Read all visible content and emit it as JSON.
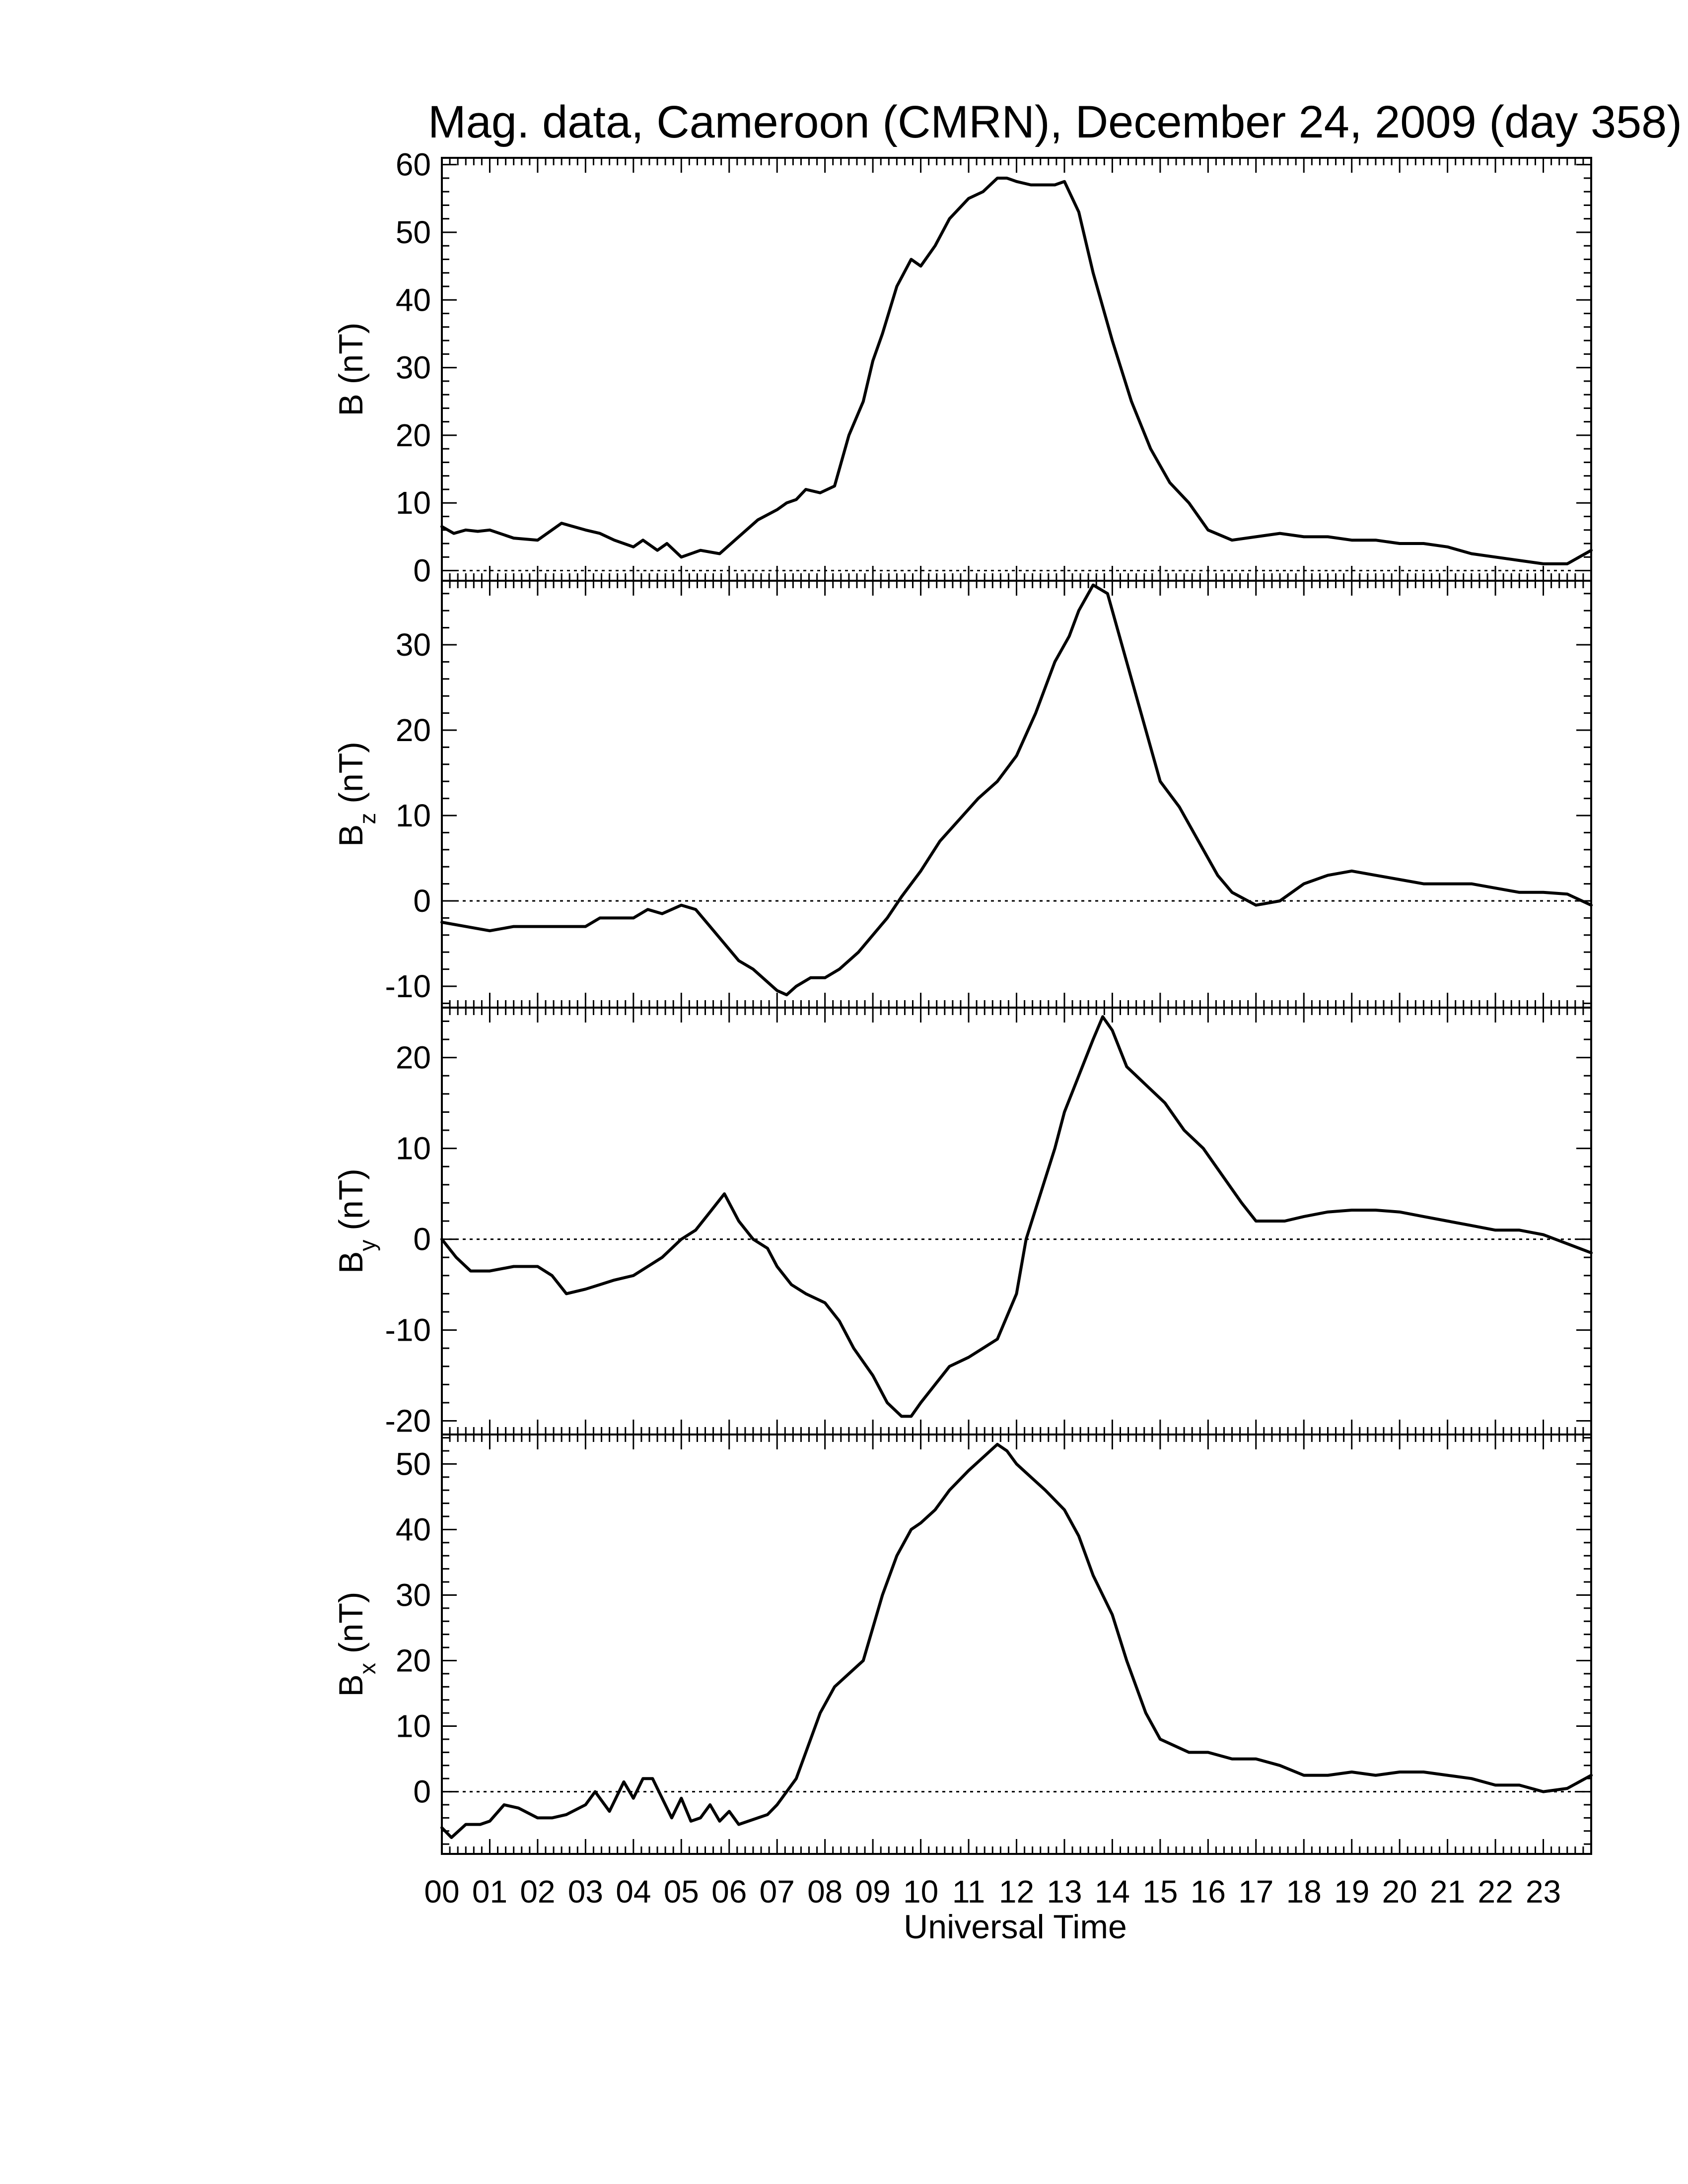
{
  "figure": {
    "title": "Mag. data, Cameroon (CMRN), December 24, 2009 (day 358)",
    "xlabel": "Universal Time"
  },
  "chart_data": [
    {
      "type": "line",
      "name": "B",
      "ylabel": {
        "main": "B",
        "sub": "",
        "unit": "(nT)"
      },
      "ylim": [
        -1.5,
        61
      ],
      "yticks": [
        0,
        10,
        20,
        30,
        40,
        50,
        60
      ],
      "zero_line": true,
      "xlim": [
        0,
        24
      ],
      "x": [
        0,
        0.25,
        0.5,
        0.75,
        1,
        1.5,
        2,
        2.5,
        3,
        3.3,
        3.6,
        4,
        4.2,
        4.5,
        4.7,
        5,
        5.4,
        5.8,
        6.2,
        6.6,
        7,
        7.2,
        7.4,
        7.6,
        7.9,
        8.2,
        8.5,
        8.8,
        9,
        9.2,
        9.5,
        9.8,
        10,
        10.3,
        10.6,
        11,
        11.3,
        11.6,
        11.8,
        12,
        12.3,
        12.6,
        12.8,
        13,
        13.3,
        13.6,
        14,
        14.4,
        14.8,
        15.2,
        15.6,
        16,
        16.5,
        17,
        17.5,
        18,
        18.5,
        19,
        19.5,
        20,
        20.5,
        21,
        21.5,
        22,
        22.5,
        23,
        23.5,
        24
      ],
      "y": [
        6.5,
        5.5,
        6,
        5.8,
        6,
        4.8,
        4.5,
        7,
        6,
        5.5,
        4.5,
        3.5,
        4.5,
        3,
        4,
        2,
        3,
        2.5,
        5,
        7.5,
        9,
        10,
        10.5,
        12,
        11.5,
        12.5,
        20,
        25,
        31,
        35,
        42,
        46,
        45,
        48,
        52,
        55,
        56,
        58,
        58,
        57.5,
        57,
        57,
        57,
        57.5,
        53,
        44,
        34,
        25,
        18,
        13,
        10,
        6,
        4.5,
        5,
        5.5,
        5,
        5,
        4.5,
        4.5,
        4,
        4,
        3.5,
        2.5,
        2,
        1.5,
        1,
        1,
        3
      ]
    },
    {
      "type": "line",
      "name": "Bz",
      "ylabel": {
        "main": "B",
        "sub": "z",
        "unit": "(nT)"
      },
      "ylim": [
        -12.5,
        37.5
      ],
      "yticks": [
        -10,
        0,
        10,
        20,
        30
      ],
      "zero_line": true,
      "xlim": [
        0,
        24
      ],
      "x": [
        0,
        0.5,
        1,
        1.5,
        2,
        2.5,
        3,
        3.3,
        3.6,
        4,
        4.3,
        4.6,
        5,
        5.3,
        5.6,
        5.9,
        6.2,
        6.5,
        6.8,
        7,
        7.2,
        7.4,
        7.7,
        8,
        8.3,
        8.7,
        9,
        9.3,
        9.6,
        10,
        10.4,
        10.8,
        11.2,
        11.6,
        12,
        12.4,
        12.8,
        13.1,
        13.3,
        13.6,
        13.9,
        14.2,
        14.6,
        15,
        15.4,
        15.8,
        16.2,
        16.5,
        17,
        17.5,
        18,
        18.5,
        19,
        19.5,
        20,
        20.5,
        21,
        21.5,
        22,
        22.5,
        23,
        23.5,
        24
      ],
      "y": [
        -2.5,
        -3,
        -3.5,
        -3,
        -3,
        -3,
        -3,
        -2,
        -2,
        -2,
        -1,
        -1.5,
        -0.5,
        -1,
        -3,
        -5,
        -7,
        -8,
        -9.5,
        -10.5,
        -11,
        -10,
        -9,
        -9,
        -8,
        -6,
        -4,
        -2,
        0.5,
        3.5,
        7,
        9.5,
        12,
        14,
        17,
        22,
        28,
        31,
        34,
        37,
        36,
        30,
        22,
        14,
        11,
        7,
        3,
        1,
        -0.5,
        0,
        2,
        3,
        3.5,
        3,
        2.5,
        2,
        2,
        2,
        1.5,
        1,
        1,
        0.8,
        -0.5
      ]
    },
    {
      "type": "line",
      "name": "By",
      "ylabel": {
        "main": "B",
        "sub": "y",
        "unit": "(nT)"
      },
      "ylim": [
        -21.5,
        25.5
      ],
      "yticks": [
        -20,
        -10,
        0,
        10,
        20
      ],
      "zero_line": true,
      "xlim": [
        0,
        24
      ],
      "x": [
        0,
        0.3,
        0.6,
        1,
        1.5,
        2,
        2.3,
        2.6,
        3,
        3.3,
        3.6,
        4,
        4.3,
        4.6,
        5,
        5.3,
        5.6,
        5.9,
        6.2,
        6.5,
        6.8,
        7,
        7.3,
        7.6,
        8,
        8.3,
        8.6,
        9,
        9.3,
        9.6,
        9.8,
        10,
        10.3,
        10.6,
        11,
        11.3,
        11.6,
        12,
        12.2,
        12.5,
        12.8,
        13,
        13.3,
        13.6,
        13.8,
        14,
        14.3,
        14.7,
        15.1,
        15.5,
        15.9,
        16.3,
        16.7,
        17,
        17.3,
        17.6,
        18,
        18.5,
        19,
        19.5,
        20,
        20.5,
        21,
        21.5,
        22,
        22.5,
        23,
        23.5,
        24
      ],
      "y": [
        0,
        -2,
        -3.5,
        -3.5,
        -3,
        -3,
        -4,
        -6,
        -5.5,
        -5,
        -4.5,
        -4,
        -3,
        -2,
        0,
        1,
        3,
        5,
        2,
        0,
        -1,
        -3,
        -5,
        -6,
        -7,
        -9,
        -12,
        -15,
        -18,
        -19.5,
        -19.5,
        -18,
        -16,
        -14,
        -13,
        -12,
        -11,
        -6,
        0,
        5,
        10,
        14,
        18,
        22,
        24.5,
        23,
        19,
        17,
        15,
        12,
        10,
        7,
        4,
        2,
        2,
        2,
        2.5,
        3,
        3.2,
        3.2,
        3,
        2.5,
        2,
        1.5,
        1,
        1,
        0.5,
        -0.5,
        -1.5
      ]
    },
    {
      "type": "line",
      "name": "Bx",
      "ylabel": {
        "main": "B",
        "sub": "x",
        "unit": "(nT)"
      },
      "ylim": [
        -9.5,
        54.5
      ],
      "yticks": [
        0,
        10,
        20,
        30,
        40,
        50
      ],
      "zero_line": true,
      "xlim": [
        0,
        24
      ],
      "x": [
        0,
        0.2,
        0.5,
        0.8,
        1,
        1.3,
        1.6,
        2,
        2.3,
        2.6,
        3,
        3.2,
        3.5,
        3.8,
        4,
        4.2,
        4.4,
        4.6,
        4.8,
        5,
        5.2,
        5.4,
        5.6,
        5.8,
        6,
        6.2,
        6.4,
        6.6,
        6.8,
        7,
        7.2,
        7.4,
        7.6,
        7.9,
        8.2,
        8.5,
        8.8,
        9,
        9.2,
        9.5,
        9.8,
        10,
        10.3,
        10.6,
        11,
        11.3,
        11.6,
        11.8,
        12,
        12.3,
        12.6,
        13,
        13.3,
        13.6,
        14,
        14.3,
        14.7,
        15,
        15.3,
        15.6,
        16,
        16.5,
        17,
        17.5,
        18,
        18.5,
        19,
        19.5,
        20,
        20.5,
        21,
        21.5,
        22,
        22.5,
        23,
        23.5,
        24
      ],
      "y": [
        -5.5,
        -7,
        -5,
        -5,
        -4.5,
        -2,
        -2.5,
        -4,
        -4,
        -3.5,
        -2,
        0,
        -3,
        1.5,
        -1,
        2,
        2,
        -1,
        -4,
        -1,
        -4.5,
        -4,
        -2,
        -4.5,
        -3,
        -5,
        -4.5,
        -4,
        -3.5,
        -2,
        0,
        2,
        6,
        12,
        16,
        18,
        20,
        25,
        30,
        36,
        40,
        41,
        43,
        46,
        49,
        51,
        53,
        52,
        50,
        48,
        46,
        43,
        39,
        33,
        27,
        20,
        12,
        8,
        7,
        6,
        6,
        5,
        5,
        4,
        2.5,
        2.5,
        3,
        2.5,
        3,
        3,
        2.5,
        2,
        1,
        1,
        0,
        0.5,
        2.5
      ]
    }
  ],
  "x_ticks": [
    "00",
    "01",
    "02",
    "03",
    "04",
    "05",
    "06",
    "07",
    "08",
    "09",
    "10",
    "11",
    "12",
    "13",
    "14",
    "15",
    "16",
    "17",
    "18",
    "19",
    "20",
    "21",
    "22",
    "23"
  ]
}
